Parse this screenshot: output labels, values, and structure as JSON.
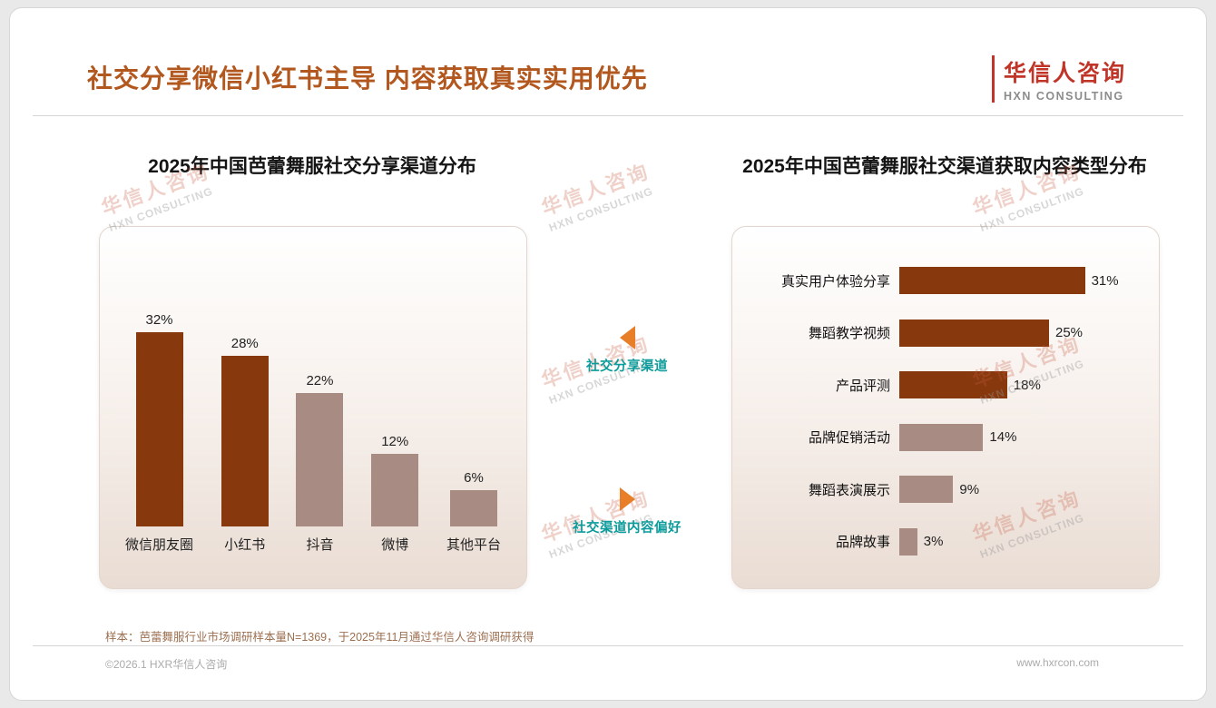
{
  "page": {
    "title": "社交分享微信小红书主导 内容获取真实实用优先",
    "logo_cn": "华信人咨询",
    "logo_en": "HXN CONSULTING"
  },
  "chart_data": [
    {
      "type": "bar",
      "orientation": "vertical",
      "title": "2025年中国芭蕾舞服社交分享渠道分布",
      "categories": [
        "微信朋友圈",
        "小红书",
        "抖音",
        "微博",
        "其他平台"
      ],
      "values": [
        32,
        28,
        22,
        12,
        6
      ],
      "unit": "%",
      "bar_colors": [
        "#87380C",
        "#87380C",
        "#A88C84",
        "#A88C84",
        "#A88C84"
      ],
      "ylim": [
        0,
        35
      ],
      "grid": false,
      "axes_visible": false
    },
    {
      "type": "bar",
      "orientation": "horizontal",
      "title": "2025年中国芭蕾舞服社交渠道获取内容类型分布",
      "categories": [
        "真实用户体验分享",
        "舞蹈教学视频",
        "产品评测",
        "品牌促销活动",
        "舞蹈表演展示",
        "品牌故事"
      ],
      "values": [
        31,
        25,
        18,
        14,
        9,
        3
      ],
      "unit": "%",
      "bar_colors": [
        "#87380C",
        "#87380C",
        "#87380C",
        "#A88C84",
        "#A88C84",
        "#A88C84"
      ],
      "xlim": [
        0,
        35
      ],
      "grid": false,
      "axes_visible": false
    }
  ],
  "annotations": [
    {
      "label": "社交分享渠道",
      "arrow": "left"
    },
    {
      "label": "社交渠道内容偏好",
      "arrow": "right"
    }
  ],
  "footnote": "样本：芭蕾舞服行业市场调研样本量N=1369，于2025年11月通过华信人咨询调研获得",
  "footer": {
    "left": "©2026.1 HXR华信人咨询",
    "right": "www.hxrcon.com"
  },
  "watermark": {
    "cn": "华信人咨询",
    "en": "HXN CONSULTING"
  },
  "colors": {
    "title": "#B2571E",
    "bar_dark": "#87380C",
    "bar_light": "#A88C84",
    "accent_teal": "#0D9B9B",
    "accent_orange": "#E87E27",
    "logo_red": "#C03527"
  }
}
